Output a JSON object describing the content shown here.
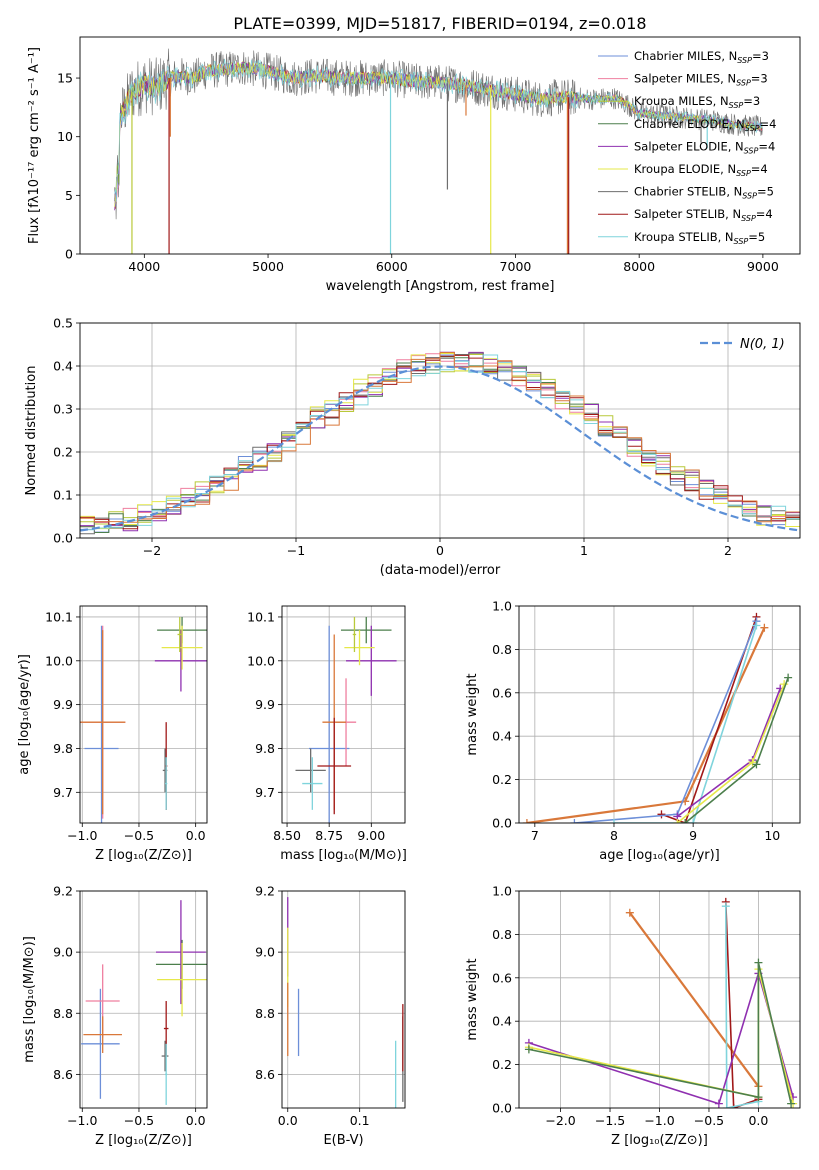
{
  "title": "PLATE=0399, MJD=51817, FIBERID=0194, z=0.018",
  "colors": {
    "Chabrier MILES": "#6d8fd8",
    "Salpeter MILES": "#ef7f9f",
    "Kroupa MILES": "#b8c93a",
    "Chabrier ELODIE": "#4c7f4c",
    "Salpeter ELODIE": "#8f30b0",
    "Kroupa ELODIE": "#e6e84a",
    "Chabrier STELIB": "#6e6e6e",
    "Salpeter STELIB": "#a01818",
    "Kroupa STELIB": "#7fd4dc",
    "orange": "#d9783a",
    "gauss": "#5b8fd6"
  },
  "legend_labels": [
    {
      "label": "Chabrier MILES, N",
      "sub": "SSP",
      "tail": "=3",
      "key": "Chabrier MILES"
    },
    {
      "label": "Salpeter MILES, N",
      "sub": "SSP",
      "tail": "=3",
      "key": "Salpeter MILES"
    },
    {
      "label": "Kroupa MILES, N",
      "sub": "SSP",
      "tail": "=3",
      "key": "Kroupa MILES"
    },
    {
      "label": "Chabrier ELODIE, N",
      "sub": "SSP",
      "tail": "=4",
      "key": "Chabrier ELODIE"
    },
    {
      "label": "Salpeter ELODIE, N",
      "sub": "SSP",
      "tail": "=4",
      "key": "Salpeter ELODIE"
    },
    {
      "label": "Kroupa ELODIE, N",
      "sub": "SSP",
      "tail": "=4",
      "key": "Kroupa ELODIE"
    },
    {
      "label": "Chabrier STELIB, N",
      "sub": "SSP",
      "tail": "=5",
      "key": "Chabrier STELIB"
    },
    {
      "label": "Salpeter STELIB, N",
      "sub": "SSP",
      "tail": "=4",
      "key": "Salpeter STELIB"
    },
    {
      "label": "Kroupa STELIB, N",
      "sub": "SSP",
      "tail": "=5",
      "key": "Kroupa STELIB"
    }
  ],
  "chart_data": [
    {
      "id": "spectrum",
      "type": "line",
      "xlabel": "wavelength [Angstrom, rest frame]",
      "ylabel": "Flux [fλ10⁻¹⁷ erg cm⁻² s⁻¹ A⁻¹]",
      "xlim": [
        3480,
        9300
      ],
      "ylim": [
        0,
        18.5
      ],
      "xticks": [
        4000,
        5000,
        6000,
        7000,
        8000,
        9000
      ],
      "yticks": [
        0,
        5,
        10,
        15
      ],
      "envelope": [
        [
          3760,
          8.5
        ],
        [
          3800,
          11.5
        ],
        [
          3900,
          13.8
        ],
        [
          4000,
          14.5
        ],
        [
          4100,
          14.2
        ],
        [
          4200,
          15.0
        ],
        [
          4300,
          15.2
        ],
        [
          4400,
          15.0
        ],
        [
          4500,
          15.6
        ],
        [
          4600,
          15.7
        ],
        [
          4700,
          15.8
        ],
        [
          4800,
          15.9
        ],
        [
          5000,
          15.6
        ],
        [
          5200,
          15.0
        ],
        [
          5400,
          15.2
        ],
        [
          5600,
          15.0
        ],
        [
          5800,
          15.0
        ],
        [
          6000,
          15.0
        ],
        [
          6200,
          14.7
        ],
        [
          6400,
          14.6
        ],
        [
          6600,
          14.4
        ],
        [
          6800,
          14.0
        ],
        [
          7000,
          13.6
        ],
        [
          7200,
          13.2
        ],
        [
          7400,
          13.4
        ],
        [
          7600,
          13.2
        ],
        [
          7800,
          13.3
        ],
        [
          7900,
          12.8
        ],
        [
          8000,
          12.0
        ],
        [
          8200,
          11.8
        ],
        [
          8400,
          11.6
        ],
        [
          8600,
          11.4
        ],
        [
          8800,
          11.0
        ],
        [
          9000,
          10.8
        ]
      ],
      "dips": [
        {
          "x": 3900,
          "y": 0.0,
          "series": "Kroupa MILES"
        },
        {
          "x": 4200,
          "y": 0.0,
          "series": "Salpeter STELIB"
        },
        {
          "x": 4210,
          "y": 10.0,
          "series": "orange"
        },
        {
          "x": 5990,
          "y": 0.0,
          "series": "Kroupa STELIB"
        },
        {
          "x": 6800,
          "y": 0.0,
          "series": "Kroupa ELODIE"
        },
        {
          "x": 7420,
          "y": 0.0,
          "series": "orange"
        },
        {
          "x": 7430,
          "y": 0.0,
          "series": "Salpeter STELIB"
        },
        {
          "x": 6450,
          "y": 5.5,
          "series": "Chabrier STELIB"
        },
        {
          "x": 6600,
          "y": 11.8,
          "series": "orange"
        },
        {
          "x": 8550,
          "y": 9.0,
          "series": "Kroupa STELIB"
        },
        {
          "x": 8500,
          "y": 9.5,
          "series": "Chabrier STELIB"
        }
      ]
    },
    {
      "id": "residual_hist",
      "type": "histogram",
      "xlabel": "(data-model)/error",
      "ylabel": "Normed distribution",
      "xlim": [
        -2.5,
        2.5
      ],
      "ylim": [
        0,
        0.5
      ],
      "xticks": [
        -2,
        -1,
        0,
        1,
        2
      ],
      "yticks": [
        0.0,
        0.1,
        0.2,
        0.3,
        0.4,
        0.5
      ],
      "legend": "N(0, 1)",
      "bin_width": 0.1
    },
    {
      "id": "age_vs_Z",
      "type": "errorbar",
      "xlabel": "Z [log₁₀(Z/Z⊙)]",
      "ylabel": "age  [log₁₀(age/yr)]",
      "xlim": [
        -1.02,
        0.1
      ],
      "ylim": [
        9.63,
        10.125
      ],
      "xticks": [
        -1.0,
        -0.5,
        0.0
      ],
      "yticks": [
        9.7,
        9.8,
        9.9,
        10.0,
        10.1
      ],
      "points": [
        {
          "s": "Chabrier MILES",
          "x": -0.83,
          "y": 9.8,
          "xerr": 0.15,
          "yerr": 0.28
        },
        {
          "s": "Salpeter MILES",
          "x": -0.82,
          "y": 9.86,
          "xerr": 0.2,
          "yerr": 0.22
        },
        {
          "s": "orange",
          "x": -0.82,
          "y": 9.86,
          "xerr": 0.2,
          "yerr": 0.21
        },
        {
          "s": "Chabrier ELODIE",
          "x": -0.12,
          "y": 10.07,
          "xerr": 0.22,
          "yerr": 0.03
        },
        {
          "s": "Salpeter ELODIE",
          "x": -0.13,
          "y": 10.0,
          "xerr": 0.23,
          "yerr": 0.07
        },
        {
          "s": "Kroupa ELODIE",
          "x": -0.12,
          "y": 10.03,
          "xerr": 0.18,
          "yerr": 0.05
        },
        {
          "s": "Kroupa MILES",
          "x": -0.14,
          "y": 10.06,
          "xerr": 0.02,
          "yerr": 0.04
        },
        {
          "s": "Chabrier STELIB",
          "x": -0.27,
          "y": 9.75,
          "xerr": 0.02,
          "yerr": 0.05
        },
        {
          "s": "Salpeter STELIB",
          "x": -0.26,
          "y": 9.76,
          "xerr": 0.01,
          "yerr": 0.1
        },
        {
          "s": "Kroupa STELIB",
          "x": -0.26,
          "y": 9.72,
          "xerr": 0.01,
          "yerr": 0.06
        }
      ]
    },
    {
      "id": "age_vs_mass",
      "type": "errorbar",
      "xlabel": "mass [log₁₀(M/M⊙)]",
      "ylabel": "",
      "xlim": [
        8.47,
        9.2
      ],
      "ylim": [
        9.63,
        10.125
      ],
      "xticks": [
        8.5,
        8.75,
        9.0
      ],
      "yticks": [
        9.7,
        9.8,
        9.9,
        10.0,
        10.1
      ],
      "points": [
        {
          "s": "Chabrier MILES",
          "x": 8.75,
          "y": 9.8,
          "xerr": 0.12,
          "yerr": 0.28
        },
        {
          "s": "Salpeter MILES",
          "x": 8.85,
          "y": 9.86,
          "xerr": 0.06,
          "yerr": 0.1
        },
        {
          "s": "orange",
          "x": 8.78,
          "y": 9.86,
          "xerr": 0.07,
          "yerr": 0.2
        },
        {
          "s": "Chabrier ELODIE",
          "x": 8.97,
          "y": 10.07,
          "xerr": 0.15,
          "yerr": 0.03
        },
        {
          "s": "Salpeter ELODIE",
          "x": 9.0,
          "y": 10.0,
          "xerr": 0.15,
          "yerr": 0.08
        },
        {
          "s": "Kroupa ELODIE",
          "x": 8.93,
          "y": 10.03,
          "xerr": 0.09,
          "yerr": 0.04
        },
        {
          "s": "Kroupa MILES",
          "x": 8.9,
          "y": 10.06,
          "xerr": 0.01,
          "yerr": 0.04
        },
        {
          "s": "Chabrier STELIB",
          "x": 8.64,
          "y": 9.75,
          "xerr": 0.09,
          "yerr": 0.05
        },
        {
          "s": "Salpeter STELIB",
          "x": 8.78,
          "y": 9.76,
          "xerr": 0.1,
          "yerr": 0.11
        },
        {
          "s": "Kroupa STELIB",
          "x": 8.65,
          "y": 9.72,
          "xerr": 0.06,
          "yerr": 0.06
        }
      ]
    },
    {
      "id": "weight_vs_age",
      "type": "line",
      "xlabel": "age  [log₁₀(age/yr)]",
      "ylabel": "mass weight",
      "xlim": [
        6.8,
        10.35
      ],
      "ylim": [
        0,
        1.0
      ],
      "xticks": [
        7,
        8,
        9,
        10
      ],
      "yticks": [
        0.0,
        0.2,
        0.4,
        0.6,
        0.8,
        1.0
      ],
      "series": [
        {
          "s": "orange",
          "x": [
            6.9,
            8.9,
            9.9
          ],
          "y": [
            0.0,
            0.1,
            0.9
          ]
        },
        {
          "s": "Salpeter STELIB",
          "x": [
            8.6,
            8.9,
            9.8
          ],
          "y": [
            0.04,
            0.0,
            0.95
          ]
        },
        {
          "s": "Chabrier MILES",
          "x": [
            7.5,
            8.8,
            9.8
          ],
          "y": [
            0.0,
            0.04,
            0.93
          ]
        },
        {
          "s": "Kroupa STELIB",
          "x": [
            8.0,
            9.0,
            9.8
          ],
          "y": [
            0.0,
            0.0,
            0.91
          ]
        },
        {
          "s": "Salpeter ELODIE",
          "x": [
            8.8,
            9.75,
            10.1
          ],
          "y": [
            0.03,
            0.29,
            0.62
          ]
        },
        {
          "s": "Kroupa ELODIE",
          "x": [
            8.8,
            9.75,
            10.15
          ],
          "y": [
            0.0,
            0.28,
            0.64
          ]
        },
        {
          "s": "Chabrier ELODIE",
          "x": [
            8.9,
            9.8,
            10.2
          ],
          "y": [
            0.0,
            0.27,
            0.67
          ]
        }
      ]
    },
    {
      "id": "mass_vs_Z",
      "type": "errorbar",
      "xlabel": "Z [log₁₀(Z/Z⊙)]",
      "ylabel": "mass [log₁₀(M/M⊙)]",
      "xlim": [
        -1.02,
        0.1
      ],
      "ylim": [
        8.49,
        9.2
      ],
      "xticks": [
        -1.0,
        -0.5,
        0.0
      ],
      "yticks": [
        8.6,
        8.8,
        9.0,
        9.2
      ],
      "points": [
        {
          "s": "Chabrier MILES",
          "x": -0.84,
          "y": 8.7,
          "xerr": 0.17,
          "yerr": 0.18
        },
        {
          "s": "Salpeter MILES",
          "x": -0.82,
          "y": 8.84,
          "xerr": 0.15,
          "yerr": 0.12
        },
        {
          "s": "orange",
          "x": -0.82,
          "y": 8.73,
          "xerr": 0.17,
          "yerr": 0.06
        },
        {
          "s": "Chabrier ELODIE",
          "x": -0.12,
          "y": 8.96,
          "xerr": 0.23,
          "yerr": 0.08
        },
        {
          "s": "Salpeter ELODIE",
          "x": -0.13,
          "y": 9.0,
          "xerr": 0.22,
          "yerr": 0.17
        },
        {
          "s": "Kroupa ELODIE",
          "x": -0.12,
          "y": 8.91,
          "xerr": 0.22,
          "yerr": 0.12
        },
        {
          "s": "Chabrier STELIB",
          "x": -0.27,
          "y": 8.66,
          "xerr": 0.03,
          "yerr": 0.05
        },
        {
          "s": "Salpeter STELIB",
          "x": -0.26,
          "y": 8.75,
          "xerr": 0.02,
          "yerr": 0.09
        },
        {
          "s": "Kroupa STELIB",
          "x": -0.26,
          "y": 8.6,
          "xerr": 0.01,
          "yerr": 0.1
        }
      ]
    },
    {
      "id": "mass_vs_ebv",
      "type": "errorbar",
      "xlabel": "E(B-V)",
      "ylabel": "",
      "xlim": [
        -0.008,
        0.163
      ],
      "ylim": [
        8.49,
        9.2
      ],
      "xticks": [
        0.0,
        0.1
      ],
      "yticks": [
        8.6,
        8.8,
        9.0,
        9.2
      ],
      "points": [
        {
          "s": "Salpeter ELODIE",
          "x": 0.0,
          "y": 9.05,
          "xerr": 0.0,
          "yerr": 0.13
        },
        {
          "s": "Kroupa ELODIE",
          "x": 0.0,
          "y": 8.95,
          "xerr": 0.0,
          "yerr": 0.13
        },
        {
          "s": "orange",
          "x": 0.0,
          "y": 8.78,
          "xerr": 0.0,
          "yerr": 0.12
        },
        {
          "s": "Chabrier MILES",
          "x": 0.015,
          "y": 8.77,
          "xerr": 0.0,
          "yerr": 0.11
        },
        {
          "s": "Kroupa STELIB",
          "x": 0.15,
          "y": 8.6,
          "xerr": 0.0,
          "yerr": 0.11
        },
        {
          "s": "Chabrier STELIB",
          "x": 0.16,
          "y": 8.65,
          "xerr": 0.0,
          "yerr": 0.14
        },
        {
          "s": "Salpeter STELIB",
          "x": 0.16,
          "y": 8.72,
          "xerr": 0.0,
          "yerr": 0.11
        }
      ]
    },
    {
      "id": "weight_vs_Z",
      "type": "line",
      "xlabel": "Z [log₁₀(Z/Z⊙)]",
      "ylabel": "mass weight",
      "xlim": [
        -2.42,
        0.42
      ],
      "ylim": [
        0,
        1.0
      ],
      "xticks": [
        -2.0,
        -1.5,
        -1.0,
        -0.5,
        0.0
      ],
      "yticks": [
        0.0,
        0.2,
        0.4,
        0.6,
        0.8,
        1.0
      ],
      "series": [
        {
          "s": "orange",
          "x": [
            -1.3,
            0.0
          ],
          "y": [
            0.9,
            0.1
          ]
        },
        {
          "s": "Salpeter STELIB",
          "x": [
            -0.33,
            -0.25,
            0.0
          ],
          "y": [
            0.95,
            0.0,
            0.04
          ]
        },
        {
          "s": "Kroupa STELIB",
          "x": [
            -0.33,
            -0.32,
            0.0
          ],
          "y": [
            0.93,
            0.0,
            0.03
          ]
        },
        {
          "s": "Salpeter ELODIE",
          "x": [
            -2.32,
            -0.4,
            0.0,
            0.35
          ],
          "y": [
            0.3,
            0.02,
            0.62,
            0.05
          ]
        },
        {
          "s": "Kroupa ELODIE",
          "x": [
            -2.32,
            0.0,
            0.0,
            0.35
          ],
          "y": [
            0.28,
            0.05,
            0.64,
            0.02
          ]
        },
        {
          "s": "Chabrier ELODIE",
          "x": [
            -2.32,
            0.0,
            0.0,
            0.33
          ],
          "y": [
            0.27,
            0.05,
            0.67,
            0.02
          ]
        }
      ]
    }
  ]
}
